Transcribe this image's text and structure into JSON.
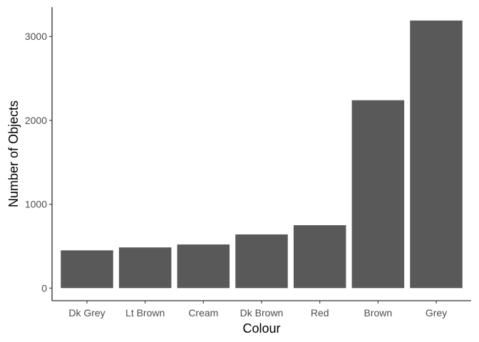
{
  "chart_data": {
    "type": "bar",
    "categories": [
      "Dk Grey",
      "Lt Brown",
      "Cream",
      "Dk Brown",
      "Red",
      "Brown",
      "Grey"
    ],
    "values": [
      450,
      485,
      520,
      640,
      750,
      2240,
      3190
    ],
    "xlabel": "Colour",
    "ylabel": "Number of Objects",
    "ylim": [
      -150,
      3350
    ],
    "yticks": [
      0,
      1000,
      2000,
      3000
    ],
    "grid": false,
    "legend": "none",
    "colors": {
      "bar": "#595959",
      "axis": "#000000",
      "tick_text": "#4d4d4d",
      "background": "#ffffff"
    }
  }
}
